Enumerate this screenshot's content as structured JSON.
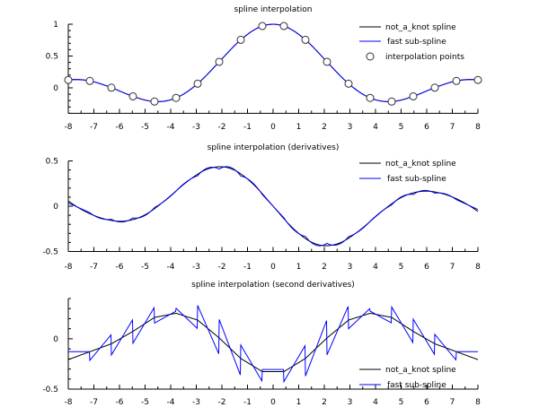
{
  "chart_data": [
    {
      "type": "line",
      "title": "spline interpolation",
      "xlim": [
        -8,
        8
      ],
      "ylim": [
        -0.4,
        1
      ],
      "xticks": [
        "-8",
        "-7",
        "-6",
        "-5",
        "-4",
        "-3",
        "-2",
        "-1",
        "0",
        "1",
        "2",
        "3",
        "4",
        "5",
        "6",
        "7",
        "8"
      ],
      "yticks": [
        "0",
        "0.5",
        "1"
      ],
      "legend_position": "top-right",
      "series": [
        {
          "name": "not_a_knot spline",
          "color": "#000000",
          "quantity": "value",
          "method": "not_a_knot"
        },
        {
          "name": "fast sub-spline",
          "color": "#0000ff",
          "quantity": "value",
          "method": "fast"
        },
        {
          "name": "interpolation points",
          "marker": "circle",
          "quantity": "points"
        }
      ]
    },
    {
      "type": "line",
      "title": "spline interpolation (derivatives)",
      "xlim": [
        -8,
        8
      ],
      "ylim": [
        -0.5,
        0.5
      ],
      "xticks": [
        "-8",
        "-7",
        "-6",
        "-5",
        "-4",
        "-3",
        "-2",
        "-1",
        "0",
        "1",
        "2",
        "3",
        "4",
        "5",
        "6",
        "7",
        "8"
      ],
      "yticks": [
        "-0.5",
        "0",
        "0.5"
      ],
      "legend_position": "top-right",
      "series": [
        {
          "name": "not_a_knot spline",
          "color": "#000000",
          "quantity": "first_derivative",
          "method": "not_a_knot"
        },
        {
          "name": "fast sub-spline",
          "color": "#0000ff",
          "quantity": "first_derivative",
          "method": "fast"
        }
      ]
    },
    {
      "type": "line",
      "title": "spline interpolation (second derivatives)",
      "xlim": [
        -8,
        8
      ],
      "ylim": [
        -0.5,
        0.4
      ],
      "xticks": [
        "-8",
        "-7",
        "-6",
        "-5",
        "-4",
        "-3",
        "-2",
        "-1",
        "0",
        "1",
        "2",
        "3",
        "4",
        "5",
        "6",
        "7",
        "8"
      ],
      "yticks": [
        "-0.5",
        "0"
      ],
      "legend_position": "bottom-right",
      "series": [
        {
          "name": "not_a_knot spline",
          "color": "#000000",
          "quantity": "second_derivative",
          "method": "not_a_knot"
        },
        {
          "name": "fast sub-spline",
          "color": "#0000ff",
          "quantity": "second_derivative",
          "method": "fast"
        }
      ]
    }
  ],
  "interpolation_points": {
    "x": [
      -8,
      -7.158,
      -6.316,
      -5.474,
      -4.632,
      -3.789,
      -2.947,
      -2.105,
      -1.263,
      -0.421,
      0.421,
      1.263,
      2.105,
      2.947,
      3.789,
      4.632,
      5.474,
      6.316,
      7.158,
      8
    ],
    "y": [
      0.124,
      0.109,
      0.003,
      -0.133,
      -0.215,
      -0.158,
      0.066,
      0.409,
      0.755,
      0.971,
      0.971,
      0.755,
      0.409,
      0.066,
      -0.158,
      -0.215,
      -0.133,
      0.003,
      0.109,
      0.124
    ]
  }
}
